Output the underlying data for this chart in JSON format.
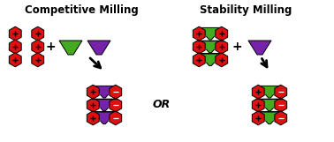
{
  "title_left": "Competitive Milling",
  "title_right": "Stability Milling",
  "or_text": "OR",
  "red_color": "#dd1111",
  "green_color": "#44aa22",
  "purple_color": "#7722aa",
  "blue_color": "#6699cc",
  "white_color": "#ffffff",
  "black_color": "#000000",
  "bg_color": "#ffffff",
  "title_fontsize": 8.5,
  "or_fontsize": 9,
  "hex_r": 8,
  "fig_w": 3.78,
  "fig_h": 1.61,
  "dpi": 100
}
